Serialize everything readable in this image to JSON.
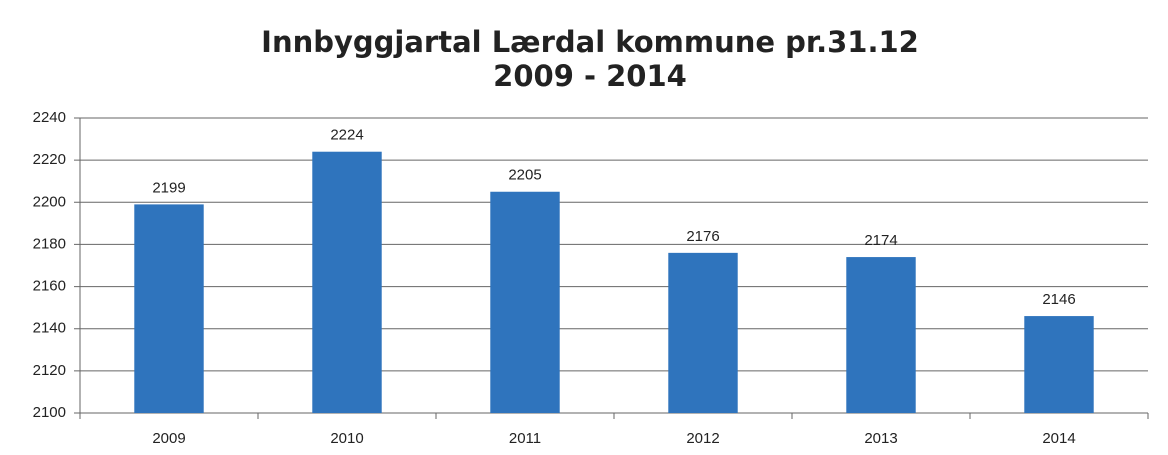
{
  "chart_data": {
    "type": "bar",
    "title": "Innbyggjartal Lærdal kommune pr.31.12",
    "subtitle": "2009 - 2014",
    "categories": [
      "2009",
      "2010",
      "2011",
      "2012",
      "2013",
      "2014"
    ],
    "values": [
      2199,
      2224,
      2205,
      2176,
      2174,
      2146
    ],
    "color": "#2f74bd",
    "ylim": [
      2100,
      2240
    ],
    "yticks": [
      2100,
      2120,
      2140,
      2160,
      2180,
      2200,
      2220,
      2240
    ],
    "grid": true
  }
}
